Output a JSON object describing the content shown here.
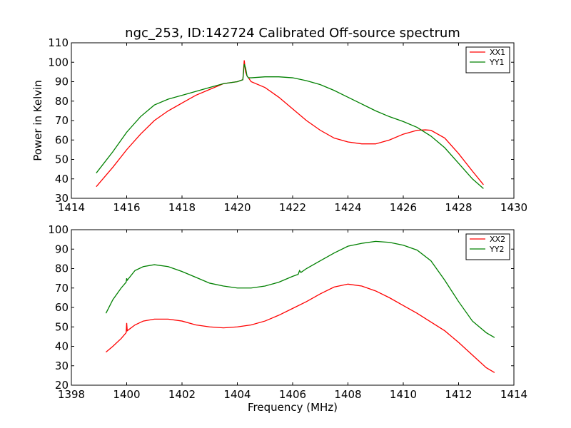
{
  "chart_data": [
    {
      "type": "line",
      "title": "ngc_253, ID:142724 Calibrated Off-source spectrum",
      "xlabel": "",
      "ylabel": "Power in Kelvin",
      "xlim": [
        1414,
        1430
      ],
      "ylim": [
        30,
        110
      ],
      "xticks": [
        1414,
        1416,
        1418,
        1420,
        1422,
        1424,
        1426,
        1428,
        1430
      ],
      "yticks": [
        30,
        40,
        50,
        60,
        70,
        80,
        90,
        100,
        110
      ],
      "grid": false,
      "legend": "top-right",
      "series": [
        {
          "name": "XX1",
          "color": "#ff0000",
          "x": [
            1414.9,
            1415.5,
            1416.0,
            1416.5,
            1417.0,
            1417.5,
            1418.0,
            1418.5,
            1419.0,
            1419.5,
            1420.0,
            1420.2,
            1420.25,
            1420.3,
            1420.35,
            1420.4,
            1420.5,
            1421.0,
            1421.5,
            1422.0,
            1422.5,
            1423.0,
            1423.5,
            1424.0,
            1424.5,
            1425.0,
            1425.5,
            1426.0,
            1426.5,
            1426.8,
            1427.0,
            1427.5,
            1428.0,
            1428.5,
            1428.9
          ],
          "y": [
            36,
            46,
            55,
            63,
            70,
            75,
            79,
            83,
            86,
            89,
            90,
            91,
            101,
            95,
            93,
            92,
            90,
            87,
            82,
            76,
            70,
            65,
            61,
            59,
            58,
            58,
            60,
            63,
            65,
            65.2,
            65,
            61,
            53,
            44,
            37
          ]
        },
        {
          "name": "YY1",
          "color": "#008000",
          "x": [
            1414.9,
            1415.5,
            1416.0,
            1416.5,
            1417.0,
            1417.5,
            1418.0,
            1418.5,
            1419.0,
            1419.5,
            1420.0,
            1420.2,
            1420.25,
            1420.3,
            1420.35,
            1420.4,
            1420.5,
            1421.0,
            1421.5,
            1422.0,
            1422.5,
            1423.0,
            1423.5,
            1424.0,
            1424.5,
            1425.0,
            1425.5,
            1426.0,
            1426.5,
            1427.0,
            1427.5,
            1428.0,
            1428.5,
            1428.9
          ],
          "y": [
            43,
            54,
            64,
            72,
            78,
            81,
            83,
            85,
            87,
            89,
            90,
            91,
            99,
            97,
            93,
            92,
            92,
            92.5,
            92.5,
            92,
            90.5,
            88.5,
            85.5,
            82,
            78.5,
            75,
            72,
            69.5,
            66.5,
            62,
            56,
            48,
            40,
            35
          ]
        }
      ]
    },
    {
      "type": "line",
      "title": "",
      "xlabel": "Frequency (MHz)",
      "ylabel": "",
      "xlim": [
        1398,
        1414
      ],
      "ylim": [
        20,
        100
      ],
      "xticks": [
        1398,
        1400,
        1402,
        1404,
        1406,
        1408,
        1410,
        1412,
        1414
      ],
      "yticks": [
        20,
        30,
        40,
        50,
        60,
        70,
        80,
        90,
        100
      ],
      "grid": false,
      "legend": "top-right",
      "series": [
        {
          "name": "XX2",
          "color": "#ff0000",
          "x": [
            1399.25,
            1399.5,
            1399.8,
            1399.98,
            1400.0,
            1400.02,
            1400.3,
            1400.6,
            1401.0,
            1401.5,
            1402.0,
            1402.5,
            1403.0,
            1403.5,
            1404.0,
            1404.5,
            1405.0,
            1405.5,
            1406.0,
            1406.5,
            1407.0,
            1407.5,
            1408.0,
            1408.5,
            1409.0,
            1409.5,
            1410.0,
            1410.5,
            1411.0,
            1411.5,
            1412.0,
            1412.5,
            1413.0,
            1413.3
          ],
          "y": [
            37,
            40,
            44,
            47,
            52,
            48,
            51,
            53,
            54,
            54,
            53,
            51,
            50,
            49.5,
            50,
            51,
            53,
            56,
            59.5,
            63,
            67,
            70.5,
            72,
            71,
            68.5,
            65,
            61,
            57,
            52.5,
            48,
            42,
            35.5,
            29,
            26.5
          ]
        },
        {
          "name": "YY2",
          "color": "#008000",
          "x": [
            1399.25,
            1399.5,
            1399.8,
            1399.98,
            1400.0,
            1400.02,
            1400.3,
            1400.6,
            1401.0,
            1401.5,
            1402.0,
            1402.5,
            1403.0,
            1403.5,
            1404.0,
            1404.5,
            1405.0,
            1405.5,
            1406.0,
            1406.2,
            1406.25,
            1406.3,
            1406.5,
            1407.0,
            1407.5,
            1408.0,
            1408.5,
            1409.0,
            1409.5,
            1410.0,
            1410.5,
            1411.0,
            1411.5,
            1412.0,
            1412.5,
            1413.0,
            1413.3
          ],
          "y": [
            57,
            64,
            70,
            73,
            75,
            74,
            79,
            81,
            82,
            81,
            78.5,
            75.5,
            72.5,
            71,
            70,
            70,
            71,
            73,
            76,
            77,
            79,
            78,
            80,
            84,
            88,
            91.5,
            93,
            94,
            93.5,
            92,
            89.5,
            84,
            74,
            63,
            53,
            47,
            44.5
          ]
        }
      ]
    }
  ]
}
